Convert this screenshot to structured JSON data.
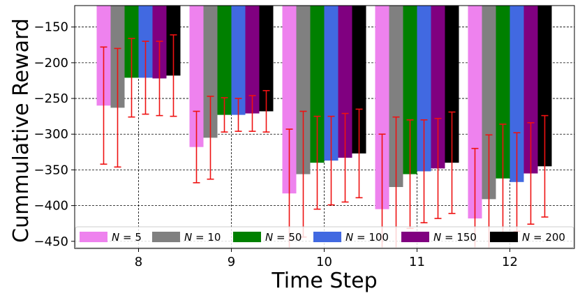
{
  "chart_data": {
    "type": "bar",
    "title": "",
    "xlabel": "Time Step",
    "ylabel": "Cummulative Reward",
    "categories": [
      "8",
      "9",
      "10",
      "11",
      "12"
    ],
    "ylim": [
      -460,
      -120
    ],
    "yticks": [
      -450,
      -400,
      -350,
      -300,
      -250,
      -200,
      -150
    ],
    "ytick_labels": [
      "−450",
      "−400",
      "−350",
      "−300",
      "−250",
      "−200",
      "−150"
    ],
    "grid": true,
    "legend_position": "bottom",
    "error_bar_color": "#ee1111",
    "series": [
      {
        "name": "N = 5",
        "legend_n": "5",
        "color": "#ee82ee",
        "values": [
          -260,
          -318,
          -383,
          -405,
          -418
        ],
        "errors": [
          82,
          50,
          90,
          105,
          98
        ]
      },
      {
        "name": "N = 10",
        "legend_n": "10",
        "color": "#808080",
        "values": [
          -263,
          -305,
          -356,
          -374,
          -391
        ],
        "errors": [
          83,
          58,
          88,
          98,
          90
        ]
      },
      {
        "name": "N = 50",
        "legend_n": "50",
        "color": "#008000",
        "values": [
          -221,
          -273,
          -340,
          -356,
          -362
        ],
        "errors": [
          55,
          24,
          65,
          76,
          76
        ]
      },
      {
        "name": "N = 100",
        "legend_n": "100",
        "color": "#4169e1",
        "values": [
          -221,
          -273,
          -337,
          -352,
          -367
        ],
        "errors": [
          51,
          23,
          62,
          72,
          69
        ]
      },
      {
        "name": "N = 150",
        "legend_n": "150",
        "color": "#800080",
        "values": [
          -222,
          -271,
          -333,
          -348,
          -355
        ],
        "errors": [
          52,
          25,
          62,
          70,
          71
        ]
      },
      {
        "name": "N = 200",
        "legend_n": "200",
        "color": "#000000",
        "values": [
          -218,
          -268,
          -327,
          -340,
          -345
        ],
        "errors": [
          57,
          29,
          62,
          71,
          71
        ]
      }
    ]
  }
}
